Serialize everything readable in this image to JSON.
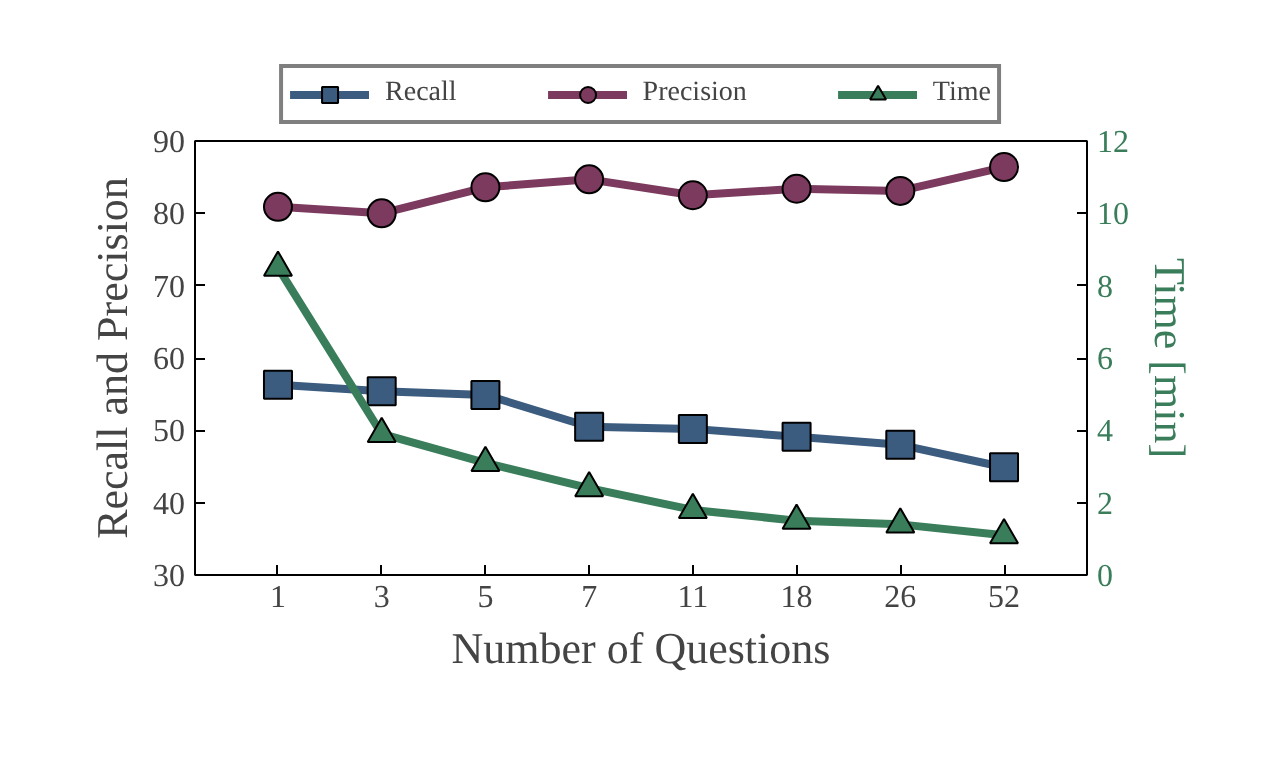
{
  "chart_data": {
    "type": "line",
    "xlabel": "Number of Questions",
    "ylabel": "Recall and Precision",
    "y2label": "Time [min]",
    "categories": [
      "1",
      "3",
      "5",
      "7",
      "11",
      "18",
      "26",
      "52"
    ],
    "series": [
      {
        "name": "Recall",
        "color": "#3b5b7f",
        "marker": "square",
        "values": [
          56.3,
          55.4,
          54.9,
          50.5,
          50.2,
          49.1,
          48.0,
          44.9
        ]
      },
      {
        "name": "Precision",
        "color": "#7b3a5e",
        "marker": "circle",
        "values": [
          80.9,
          80.0,
          83.6,
          84.7,
          82.5,
          83.4,
          83.1,
          86.4
        ]
      },
      {
        "name": "Time",
        "color": "#3a7d5a",
        "marker": "triangle",
        "axis": "y2",
        "values": [
          8.5,
          3.9,
          3.1,
          2.4,
          1.8,
          1.5,
          1.4,
          1.1
        ]
      }
    ],
    "ylim": [
      30,
      90
    ],
    "yticks": [
      30,
      40,
      50,
      60,
      70,
      80,
      90
    ],
    "y2lim": [
      0,
      12
    ],
    "y2ticks": [
      0,
      2,
      4,
      6,
      8,
      10,
      12
    ],
    "grid": false,
    "legend": "top",
    "line_style": "solid"
  }
}
